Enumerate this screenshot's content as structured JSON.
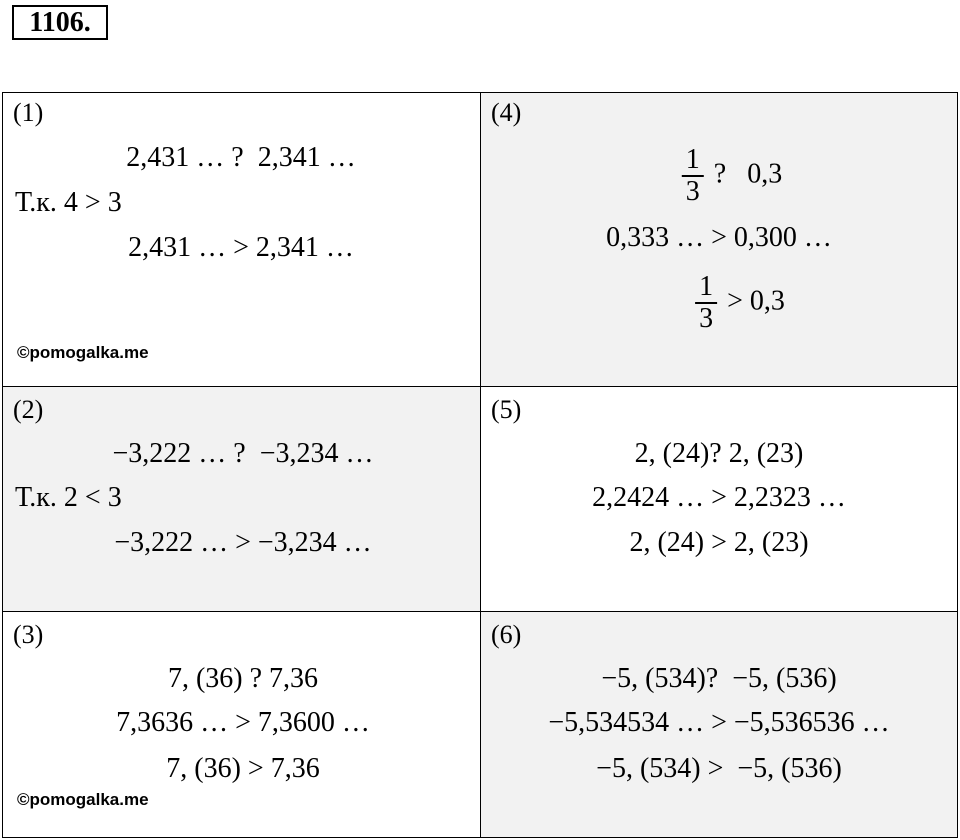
{
  "header": {
    "title": "1106."
  },
  "cells": [
    {
      "label": "(1)",
      "lines": [
        "2,431 … ?  2,341 …",
        "Т.к. 4 > 3",
        "2,431 … > 2,341 …"
      ],
      "watermark": "©pomogalka.me"
    },
    {
      "label": "(4)",
      "lines": [
        {
          "numerator": "1",
          "denominator": "3",
          "text": "?   0,3"
        },
        "0,333 … > 0,300 …",
        {
          "numerator": "1",
          "denominator": "3",
          "text": "> 0,3"
        }
      ]
    },
    {
      "label": "(2)",
      "lines": [
        "−3,222 … ?  −3,234 …",
        "Т.к. 2 < 3",
        "−3,222 … > −3,234 …"
      ]
    },
    {
      "label": "(5)",
      "lines": [
        "2, (24)? 2, (23)",
        "2,2424 … > 2,2323 …",
        "2, (24) > 2, (23)"
      ]
    },
    {
      "label": "(3)",
      "lines": [
        "7, (36) ? 7,36",
        "7,3636 … > 7,3600 …",
        "7, (36) > 7,36"
      ],
      "watermark": "©pomogalka.me"
    },
    {
      "label": "(6)",
      "lines": [
        "−5, (534)?  −5, (536)",
        "−5,534534 … > −5,536536 …",
        "−5, (534) >  −5, (536)"
      ]
    }
  ]
}
